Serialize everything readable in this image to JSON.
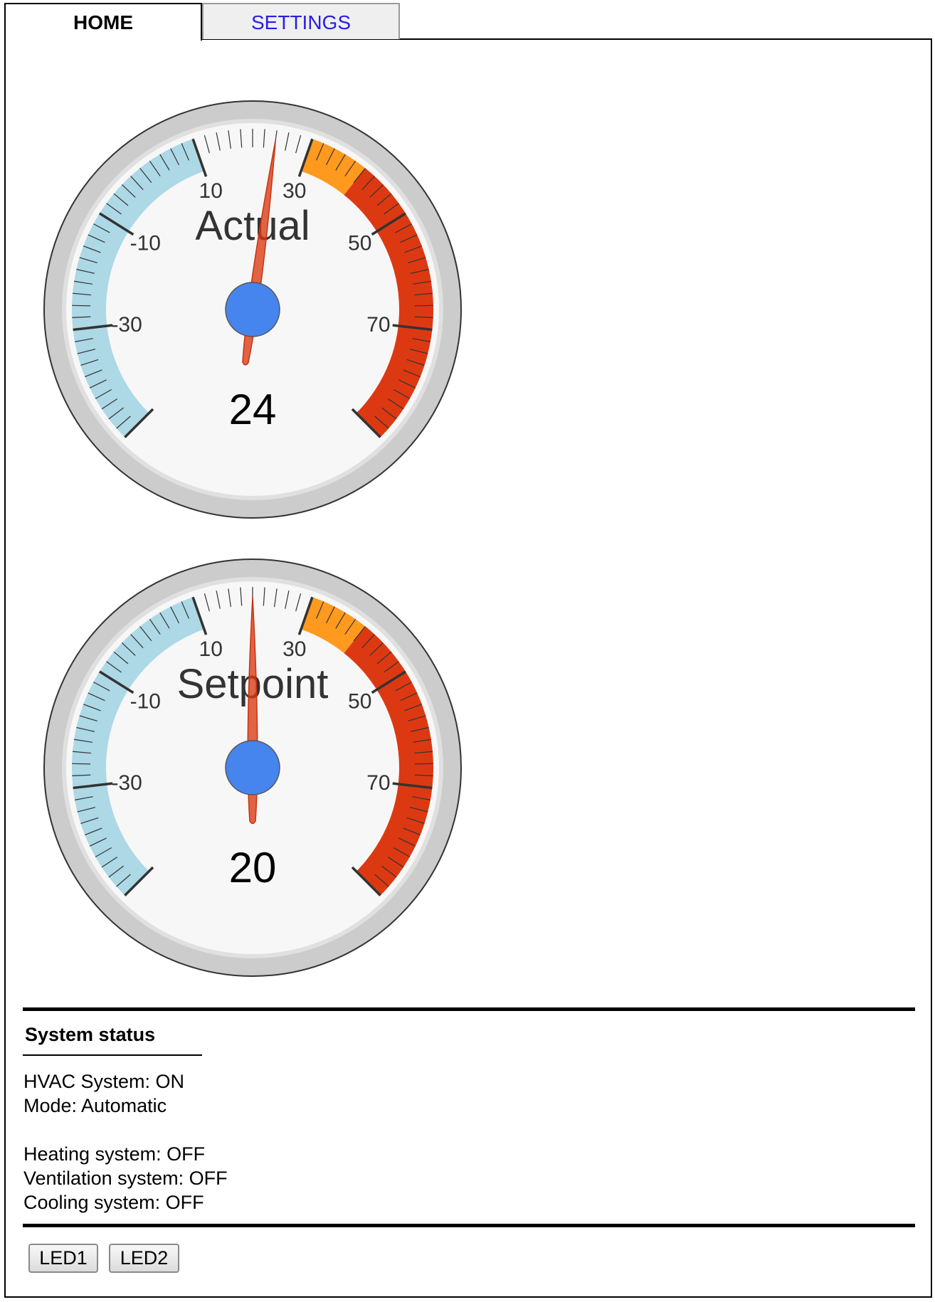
{
  "tabs": [
    {
      "label": "HOME",
      "active": true
    },
    {
      "label": "SETTINGS",
      "active": false
    }
  ],
  "gauges": [
    {
      "title": "Actual",
      "value": 24,
      "value_label": "24",
      "min": -50,
      "max": 90,
      "tick_labels": [
        "-30",
        "-10",
        "10",
        "30",
        "50",
        "70"
      ],
      "bands": [
        {
          "from": -50,
          "to": 10,
          "color": "#add8e6"
        },
        {
          "from": 30,
          "to": 40,
          "color": "#ff9a1f"
        },
        {
          "from": 40,
          "to": 90,
          "color": "#dc3912"
        }
      ]
    },
    {
      "title": "Setpoint",
      "value": 20,
      "value_label": "20",
      "min": -50,
      "max": 90,
      "tick_labels": [
        "-30",
        "-10",
        "10",
        "30",
        "50",
        "70"
      ],
      "bands": [
        {
          "from": -50,
          "to": 10,
          "color": "#add8e6"
        },
        {
          "from": 30,
          "to": 40,
          "color": "#ff9a1f"
        },
        {
          "from": 40,
          "to": 90,
          "color": "#dc3912"
        }
      ]
    }
  ],
  "colors": {
    "needle": "#dc3912",
    "hub": "#4684ee",
    "dial_face": "#f7f7f7",
    "dial_rim": "#cccccc"
  },
  "status": {
    "title": "System status",
    "hvac": "HVAC System: ON",
    "mode": "Mode: Automatic",
    "heating": "Heating system: OFF",
    "ventilation": "Ventilation system: OFF",
    "cooling": "Cooling system: OFF"
  },
  "buttons": {
    "led1": "LED1",
    "led2": "LED2"
  }
}
